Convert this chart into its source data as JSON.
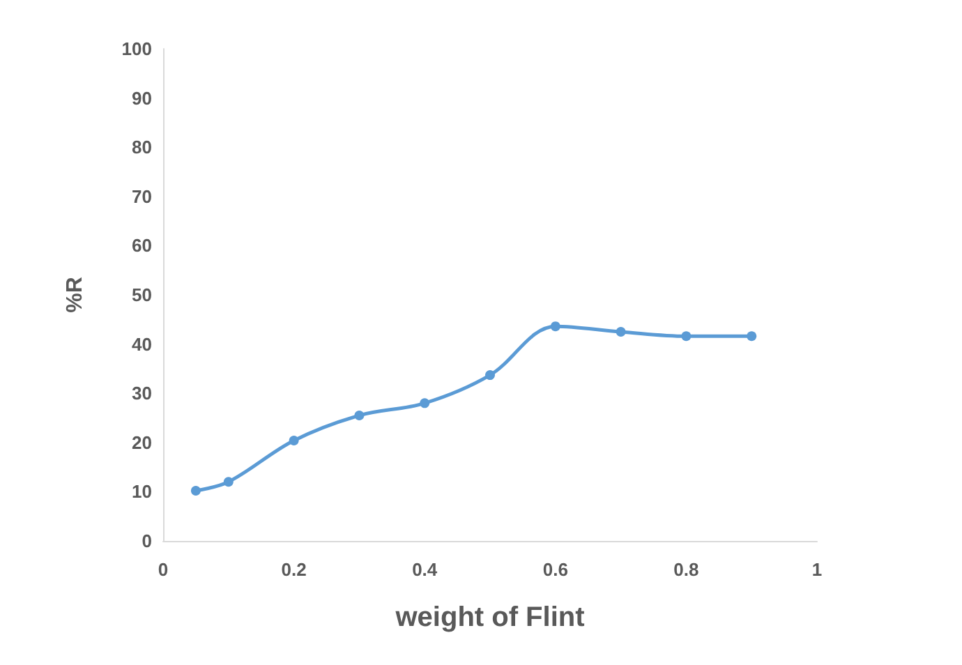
{
  "chart_data": {
    "type": "line",
    "xlabel": "weight of Flint",
    "ylabel": "%R",
    "x": [
      0.05,
      0.1,
      0.2,
      0.3,
      0.4,
      0.5,
      0.6,
      0.7,
      0.8,
      0.9
    ],
    "series": [
      {
        "color": "#5b9bd5",
        "values": [
          10.2,
          12,
          20.4,
          25.5,
          28,
          33.7,
          43.6,
          42.5,
          41.6,
          41.6
        ]
      }
    ],
    "xlim": [
      0,
      1
    ],
    "xticks": [
      0,
      0.2,
      0.4,
      0.6,
      0.8,
      1
    ],
    "ylim": [
      0,
      100
    ],
    "yticks": [
      0,
      10,
      20,
      30,
      40,
      50,
      60,
      70,
      80,
      90,
      100
    ],
    "marker": "circle",
    "line_style": "solid"
  }
}
